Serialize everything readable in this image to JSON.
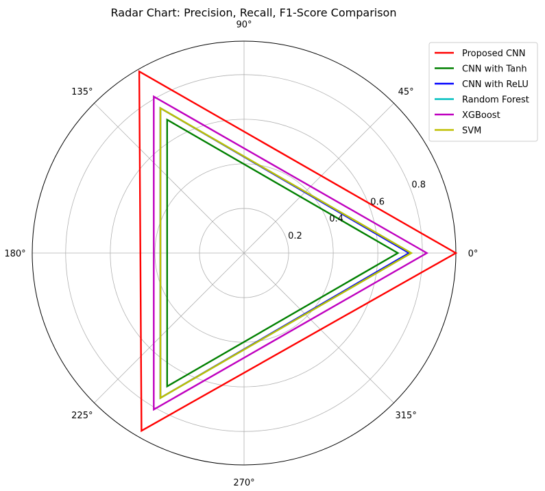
{
  "chart_data": {
    "type": "radar",
    "title": "Radar Chart: Precision, Recall, F1-Score Comparison",
    "angle_ticks": [
      {
        "deg": 0,
        "label": "0°"
      },
      {
        "deg": 45,
        "label": "45°"
      },
      {
        "deg": 90,
        "label": "90°"
      },
      {
        "deg": 135,
        "label": "135°"
      },
      {
        "deg": 180,
        "label": "180°"
      },
      {
        "deg": 225,
        "label": "225°"
      },
      {
        "deg": 270,
        "label": "270°"
      },
      {
        "deg": 315,
        "label": "315°"
      }
    ],
    "radial_ticks": [
      {
        "value": 0.2,
        "label": "0.2"
      },
      {
        "value": 0.4,
        "label": "0.4"
      },
      {
        "value": 0.6,
        "label": "0.6"
      },
      {
        "value": 0.8,
        "label": "0.8"
      }
    ],
    "rlim": [
      0,
      0.95
    ],
    "vertex_angles_deg": [
      0,
      120,
      240
    ],
    "grid": true,
    "legend_position": "top-right",
    "series": [
      {
        "name": "Proposed CNN",
        "color": "#ff0000",
        "values": [
          0.95,
          0.94,
          0.92
        ]
      },
      {
        "name": "CNN with Tanh",
        "color": "#008000",
        "values": [
          0.69,
          0.69,
          0.69
        ]
      },
      {
        "name": "CNN with ReLU",
        "color": "#0000ff",
        "values": [
          0.74,
          0.75,
          0.75
        ]
      },
      {
        "name": "Random Forest",
        "color": "#00bfbf",
        "values": [
          0.75,
          0.75,
          0.75
        ]
      },
      {
        "name": "XGBoost",
        "color": "#bf00bf",
        "values": [
          0.82,
          0.81,
          0.81
        ]
      },
      {
        "name": "SVM",
        "color": "#bfbf00",
        "values": [
          0.75,
          0.75,
          0.75
        ]
      }
    ]
  }
}
